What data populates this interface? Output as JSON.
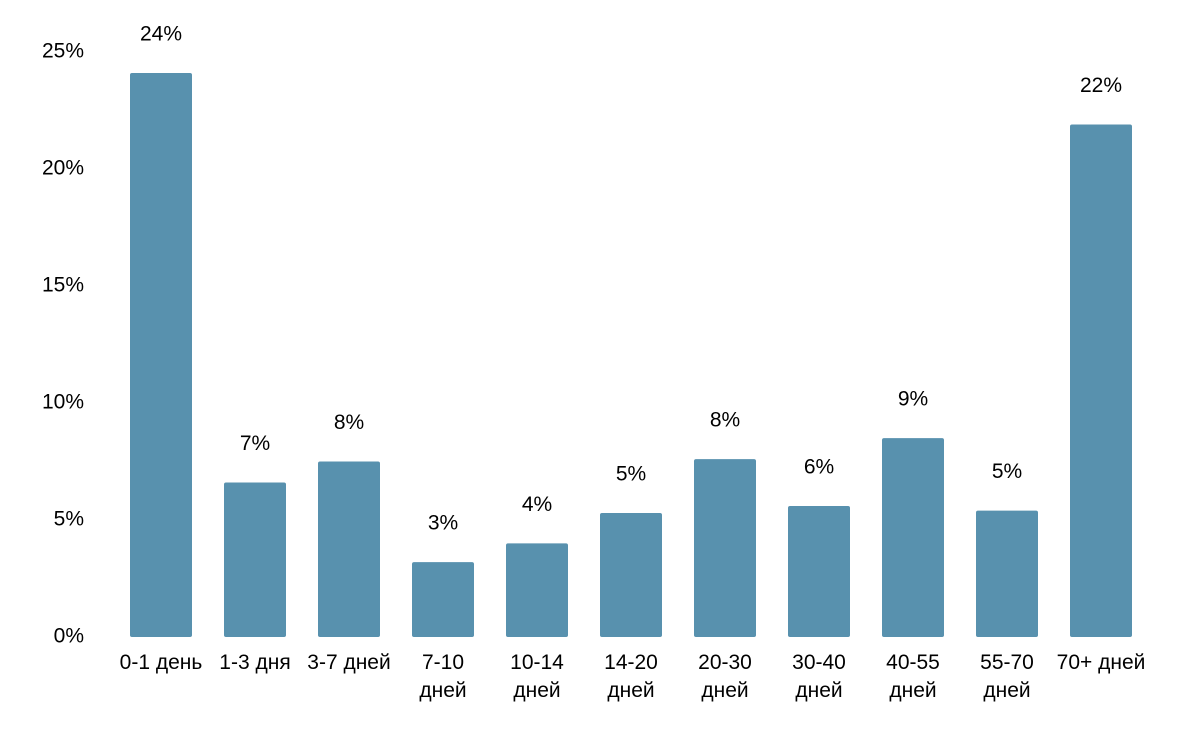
{
  "chart_data": {
    "type": "bar",
    "categories": [
      "0-1 день",
      "1-3 дня",
      "3-7 дней",
      "7-10 дней",
      "10-14 дней",
      "14-20 дней",
      "20-30 дней",
      "30-40 дней",
      "40-55 дней",
      "55-70 дней",
      "70+ дней"
    ],
    "values": [
      24.1,
      6.6,
      7.5,
      3.2,
      4.0,
      5.3,
      7.6,
      5.6,
      8.5,
      5.4,
      21.9
    ],
    "value_labels": [
      "24%",
      "7%",
      "8%",
      "3%",
      "4%",
      "5%",
      "8%",
      "6%",
      "9%",
      "5%",
      "22%"
    ],
    "color": "#5891ae",
    "ylim": [
      0,
      25
    ],
    "yticks": [
      {
        "value": 0,
        "label": "0%"
      },
      {
        "value": 5,
        "label": "5%"
      },
      {
        "value": 10,
        "label": "10%"
      },
      {
        "value": 15,
        "label": "15%"
      },
      {
        "value": 20,
        "label": "20%"
      },
      {
        "value": 25,
        "label": "25%"
      }
    ],
    "grid": false
  }
}
